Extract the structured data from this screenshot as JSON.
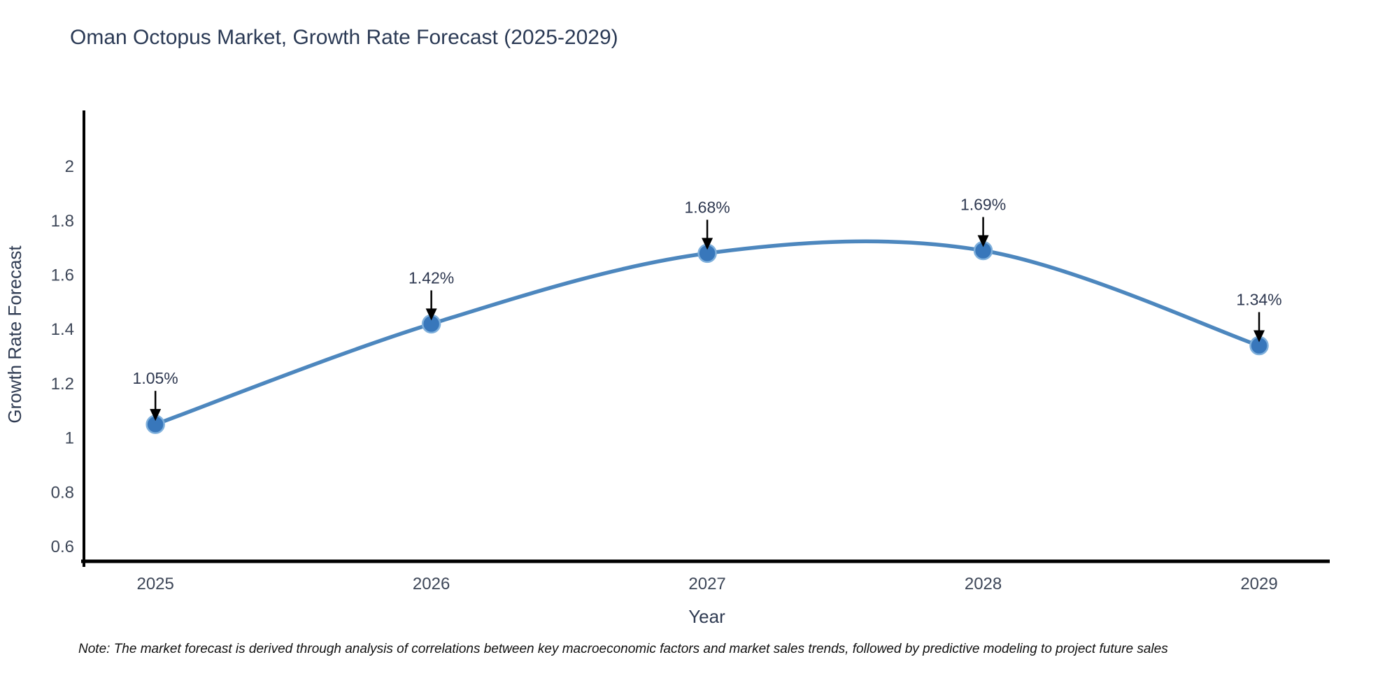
{
  "chart": {
    "title": "Oman Octopus Market, Growth Rate Forecast (2025-2029)",
    "note": "Note: The market forecast is derived through analysis of correlations between key macroeconomic factors and market sales trends, followed by predictive modeling to project future sales",
    "xlabel": "Year",
    "ylabel": "Growth Rate Forecast"
  },
  "chart_data": {
    "type": "line",
    "title": "Oman Octopus Market, Growth Rate Forecast (2025-2029)",
    "xlabel": "Year",
    "ylabel": "Growth Rate Forecast",
    "line_shape": "spline",
    "grid": false,
    "legend": "none",
    "x": [
      2025,
      2026,
      2027,
      2028,
      2029
    ],
    "y": [
      1.05,
      1.42,
      1.68,
      1.69,
      1.34
    ],
    "point_labels": [
      "1.05%",
      "1.42%",
      "1.68%",
      "1.69%",
      "1.34%"
    ],
    "x_ticks": [
      2025,
      2026,
      2027,
      2028,
      2029
    ],
    "y_ticks": [
      0.6,
      0.8,
      1,
      1.2,
      1.4,
      1.6,
      1.8,
      2
    ],
    "x_range": [
      2024.741,
      2029.256
    ],
    "y_range": [
      0.546,
      2.206
    ],
    "colors": {
      "line": "#4d87be",
      "marker_fill": "#3877bb",
      "marker_edge": "#7fb0dc",
      "arrow": "#000000",
      "axis_line": "#000000",
      "title_text": "#2b3a55",
      "tick_text": "#3e4758",
      "note_text": "#111111"
    }
  }
}
